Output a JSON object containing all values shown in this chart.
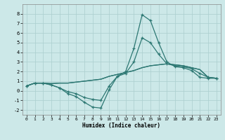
{
  "x": [
    0,
    1,
    2,
    3,
    4,
    5,
    6,
    7,
    8,
    9,
    10,
    11,
    12,
    13,
    14,
    15,
    16,
    17,
    18,
    19,
    20,
    21,
    22,
    23
  ],
  "line_spike": [
    0.5,
    0.8,
    0.8,
    0.6,
    0.3,
    -0.3,
    -0.6,
    -1.2,
    -1.7,
    -1.8,
    0.1,
    1.5,
    2.0,
    4.4,
    7.9,
    7.3,
    5.0,
    3.0,
    2.5,
    2.4,
    2.1,
    1.4,
    1.3,
    1.3
  ],
  "line_flat1": [
    0.5,
    0.8,
    0.8,
    0.75,
    0.8,
    0.8,
    0.9,
    1.0,
    1.1,
    1.2,
    1.5,
    1.7,
    1.9,
    2.1,
    2.4,
    2.6,
    2.7,
    2.8,
    2.7,
    2.6,
    2.4,
    2.2,
    1.4,
    1.3
  ],
  "line_flat2": [
    0.5,
    0.8,
    0.8,
    0.75,
    0.8,
    0.8,
    0.9,
    1.0,
    1.1,
    1.2,
    1.5,
    1.7,
    1.9,
    2.1,
    2.4,
    2.6,
    2.7,
    2.8,
    2.7,
    2.6,
    2.4,
    2.2,
    1.4,
    1.3
  ],
  "line_mid": [
    0.5,
    0.8,
    0.8,
    0.6,
    0.3,
    -0.1,
    -0.3,
    -0.7,
    -0.9,
    -1.0,
    0.5,
    1.5,
    1.8,
    3.0,
    5.5,
    5.0,
    3.8,
    2.8,
    2.6,
    2.5,
    2.3,
    1.8,
    1.4,
    1.3
  ],
  "line_color": "#2d7873",
  "bg_color": "#cce8e8",
  "grid_color": "#aacece",
  "xlabel": "Humidex (Indice chaleur)",
  "ylim": [
    -2.5,
    9.0
  ],
  "xlim": [
    -0.5,
    23.5
  ],
  "yticks": [
    -2,
    -1,
    0,
    1,
    2,
    3,
    4,
    5,
    6,
    7,
    8
  ],
  "xticks": [
    0,
    1,
    2,
    3,
    4,
    5,
    6,
    7,
    8,
    9,
    10,
    11,
    12,
    13,
    14,
    15,
    16,
    17,
    18,
    19,
    20,
    21,
    22,
    23
  ]
}
